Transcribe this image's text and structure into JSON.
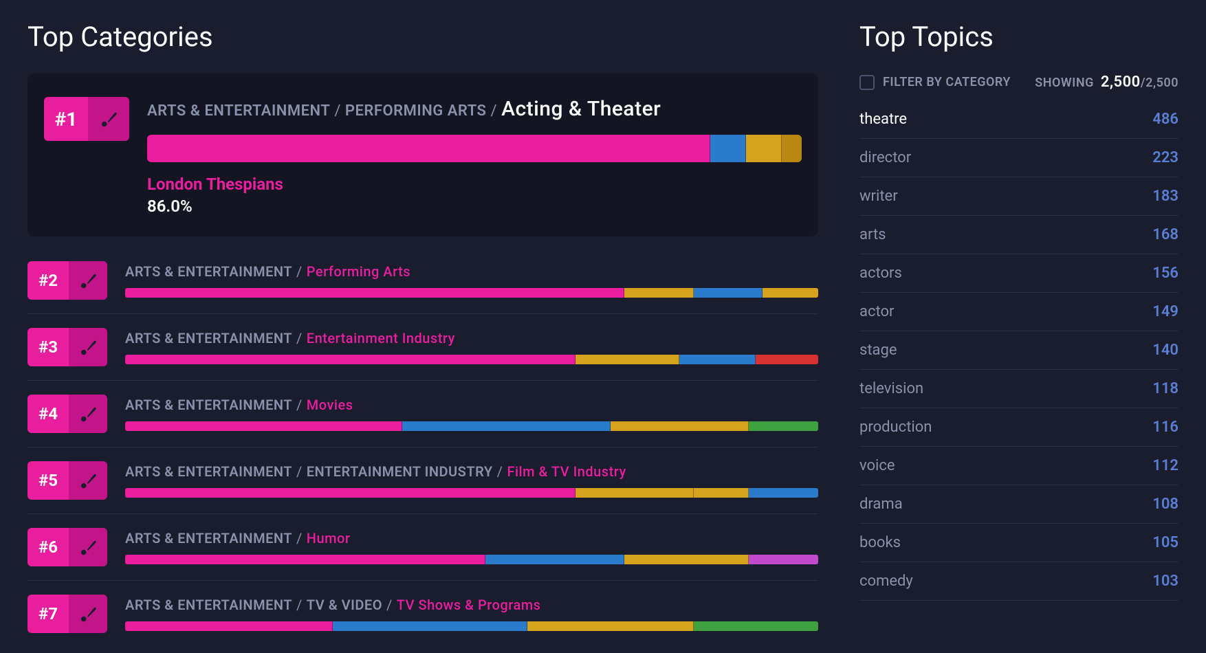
{
  "colors": {
    "background": "#1a1d2e",
    "panel_featured": "#131622",
    "accent_pink": "#e91e9e",
    "accent_pink_dark": "#c4148a",
    "text_muted": "#8a92ab",
    "text_white": "#ffffff",
    "count_blue": "#5a7fd6",
    "divider": "#2a2f44",
    "seg_pink": "#e91e9e",
    "seg_blue": "#2b7bcc",
    "seg_yellow": "#d6a31e",
    "seg_darkyellow": "#b88812",
    "seg_red": "#d73232",
    "seg_green": "#3fa03f",
    "seg_purple": "#c24acf"
  },
  "left": {
    "title": "Top Categories",
    "featured": {
      "rank": "#1",
      "crumbs": [
        "ARTS & ENTERTAINMENT",
        "PERFORMING ARTS"
      ],
      "leaf": "Acting & Theater",
      "label": "London Thespians",
      "percent": "86.0%",
      "segments": [
        {
          "color": "#e91e9e",
          "pct": 86.0
        },
        {
          "color": "#2b7bcc",
          "pct": 5.5
        },
        {
          "color": "#d6a31e",
          "pct": 5.5
        },
        {
          "color": "#b88812",
          "pct": 3.0
        }
      ]
    },
    "items": [
      {
        "rank": "#2",
        "crumbs": [
          "ARTS & ENTERTAINMENT"
        ],
        "leaf": "Performing Arts",
        "segments": [
          {
            "color": "#e91e9e",
            "pct": 72
          },
          {
            "color": "#d6a31e",
            "pct": 10
          },
          {
            "color": "#2b7bcc",
            "pct": 10
          },
          {
            "color": "#d6a31e",
            "pct": 8
          }
        ]
      },
      {
        "rank": "#3",
        "crumbs": [
          "ARTS & ENTERTAINMENT"
        ],
        "leaf": "Entertainment Industry",
        "segments": [
          {
            "color": "#e91e9e",
            "pct": 65
          },
          {
            "color": "#d6a31e",
            "pct": 15
          },
          {
            "color": "#2b7bcc",
            "pct": 11
          },
          {
            "color": "#d73232",
            "pct": 9
          }
        ]
      },
      {
        "rank": "#4",
        "crumbs": [
          "ARTS & ENTERTAINMENT"
        ],
        "leaf": "Movies",
        "segments": [
          {
            "color": "#e91e9e",
            "pct": 40
          },
          {
            "color": "#2b7bcc",
            "pct": 30
          },
          {
            "color": "#d6a31e",
            "pct": 20
          },
          {
            "color": "#3fa03f",
            "pct": 10
          }
        ]
      },
      {
        "rank": "#5",
        "crumbs": [
          "ARTS & ENTERTAINMENT",
          "ENTERTAINMENT INDUSTRY"
        ],
        "leaf": "Film & TV Industry",
        "segments": [
          {
            "color": "#e91e9e",
            "pct": 65
          },
          {
            "color": "#d6a31e",
            "pct": 17
          },
          {
            "color": "#d6a31e",
            "pct": 8
          },
          {
            "color": "#2b7bcc",
            "pct": 10
          }
        ]
      },
      {
        "rank": "#6",
        "crumbs": [
          "ARTS & ENTERTAINMENT"
        ],
        "leaf": "Humor",
        "segments": [
          {
            "color": "#e91e9e",
            "pct": 52
          },
          {
            "color": "#2b7bcc",
            "pct": 20
          },
          {
            "color": "#d6a31e",
            "pct": 18
          },
          {
            "color": "#c24acf",
            "pct": 10
          }
        ]
      },
      {
        "rank": "#7",
        "crumbs": [
          "ARTS & ENTERTAINMENT",
          "TV & VIDEO"
        ],
        "leaf": "TV Shows & Programs",
        "segments": [
          {
            "color": "#e91e9e",
            "pct": 30
          },
          {
            "color": "#2b7bcc",
            "pct": 28
          },
          {
            "color": "#d6a31e",
            "pct": 24
          },
          {
            "color": "#3fa03f",
            "pct": 18
          }
        ]
      }
    ]
  },
  "right": {
    "title": "Top Topics",
    "filter_label": "FILTER BY CATEGORY",
    "showing_label": "SHOWING",
    "showing_current": "2,500",
    "showing_total": "2,500",
    "topics": [
      {
        "name": "theatre",
        "count": "486",
        "active": true
      },
      {
        "name": "director",
        "count": "223"
      },
      {
        "name": "writer",
        "count": "183"
      },
      {
        "name": "arts",
        "count": "168"
      },
      {
        "name": "actors",
        "count": "156"
      },
      {
        "name": "actor",
        "count": "149"
      },
      {
        "name": "stage",
        "count": "140"
      },
      {
        "name": "television",
        "count": "118"
      },
      {
        "name": "production",
        "count": "116"
      },
      {
        "name": "voice",
        "count": "112"
      },
      {
        "name": "drama",
        "count": "108"
      },
      {
        "name": "books",
        "count": "105"
      },
      {
        "name": "comedy",
        "count": "103"
      }
    ]
  }
}
